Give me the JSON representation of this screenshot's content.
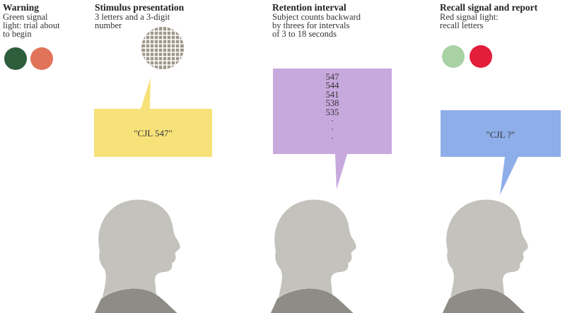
{
  "stages": [
    {
      "id": "warning",
      "title": "Warning",
      "description": [
        "Green signal",
        "light: trial about",
        "to begin"
      ],
      "lights": [
        {
          "name": "green-light",
          "color": "#2e5d3b"
        },
        {
          "name": "red-light",
          "color": "#e1735a"
        }
      ]
    },
    {
      "id": "stimulus",
      "title": "Stimulus presentation",
      "description": [
        "3 letters and a 3-digit",
        "number"
      ],
      "bubble_text": "\"CJL 547\"",
      "bubble_color": "#f7e27a"
    },
    {
      "id": "retention",
      "title": "Retention interval",
      "description": [
        "Subject counts backward",
        "by threes for intervals",
        "of 3 to 18 seconds"
      ],
      "counts": [
        "547",
        "544",
        "541",
        "538",
        "535",
        "·",
        "·",
        "·"
      ],
      "bubble_color": "#c8a9de"
    },
    {
      "id": "recall",
      "title": "Recall signal and report",
      "description": [
        "Red signal light:",
        "recall letters"
      ],
      "bubble_text": "\"CJL ?\"",
      "bubble_color": "#8eaee9",
      "lights": [
        {
          "name": "green-light",
          "color": "#a9d2a4"
        },
        {
          "name": "red-light",
          "color": "#e21e3a"
        }
      ]
    }
  ],
  "colors": {
    "silhouette": "#c4c2bc",
    "shirt": "#8e8c86",
    "grid_fill": "#9e978a"
  }
}
